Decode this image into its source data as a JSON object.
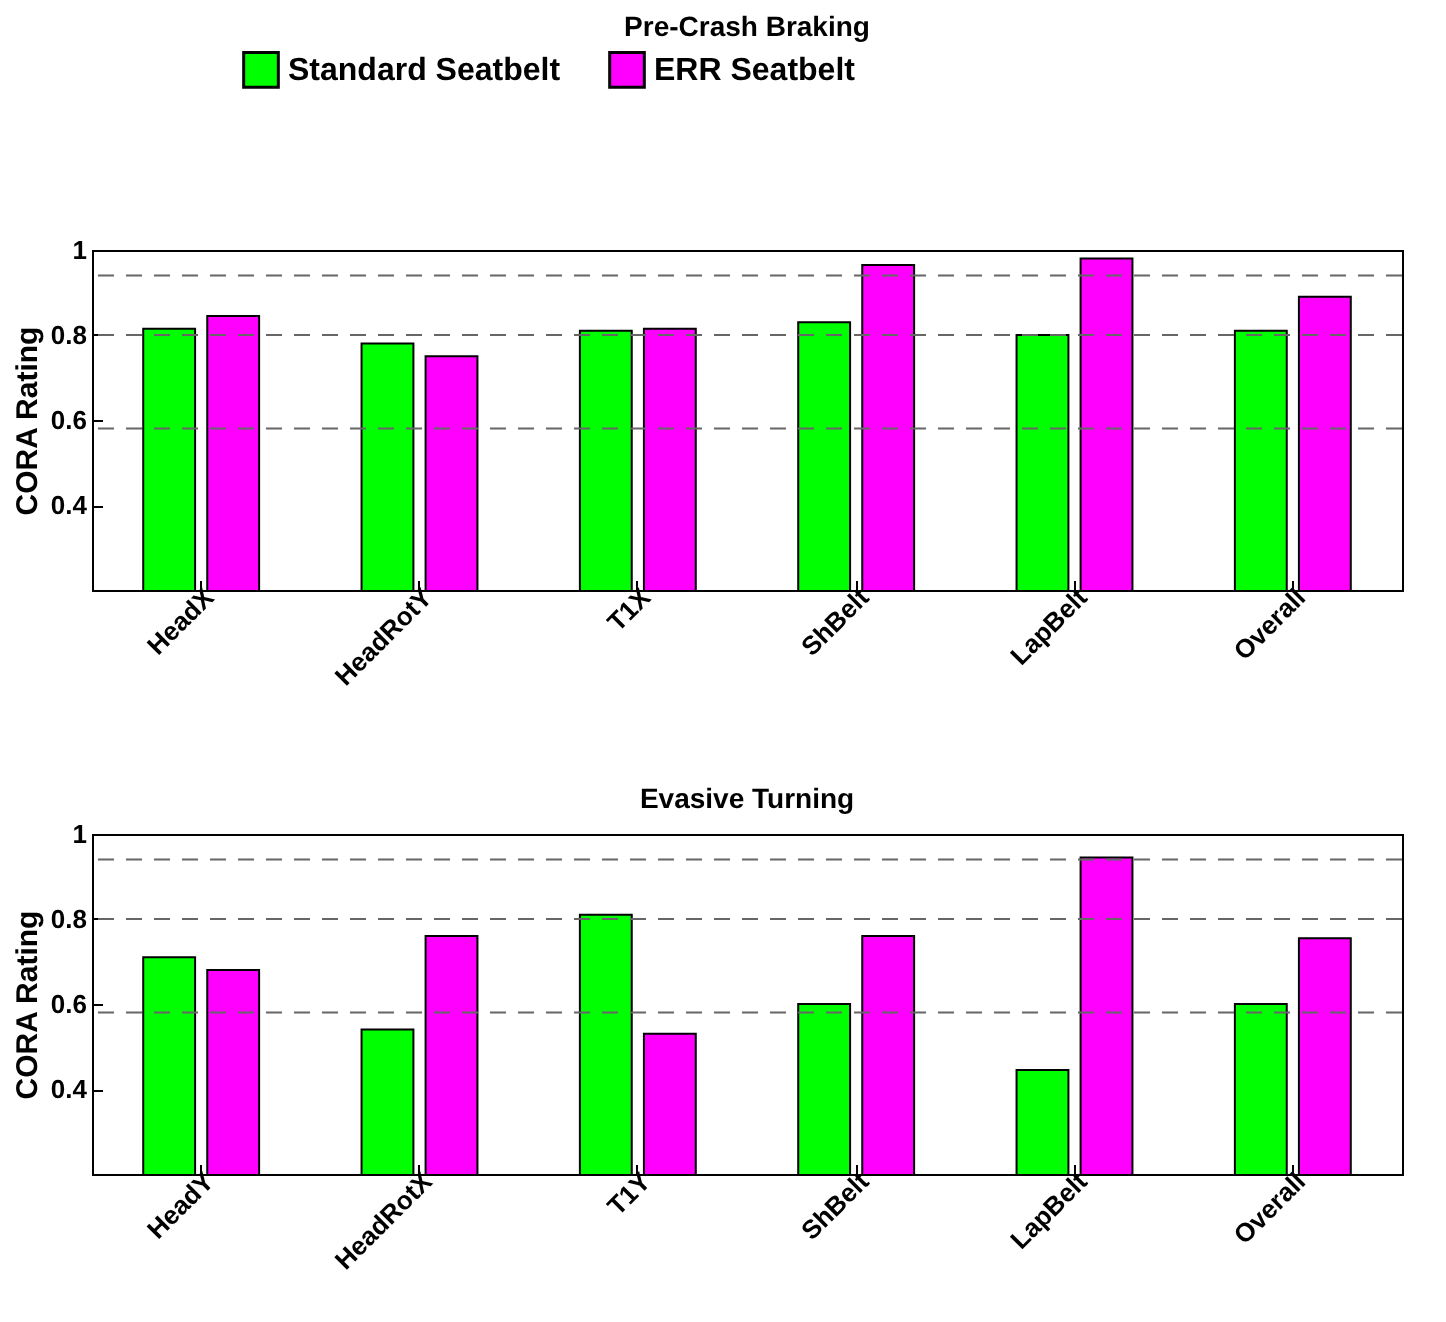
{
  "chart_data": [
    {
      "type": "bar",
      "title": "Pre-Crash Braking",
      "ylabel": "CORA Rating",
      "categories": [
        "HeadX",
        "HeadRotY",
        "T1X",
        "ShBelt",
        "LapBelt",
        "Overall"
      ],
      "series": [
        {
          "name": "Standard Seatbelt",
          "color": "#00ff00",
          "values": [
            0.815,
            0.78,
            0.81,
            0.83,
            0.8,
            0.81
          ]
        },
        {
          "name": "ERR Seatbelt",
          "color": "#ff00ff",
          "values": [
            0.845,
            0.75,
            0.815,
            0.965,
            0.98,
            0.89
          ]
        }
      ],
      "ylim": [
        0.2,
        1
      ],
      "yticks": [
        0.4,
        0.6,
        0.8,
        1
      ],
      "grid": false,
      "legend": "top",
      "ref_lines": [
        {
          "axis": "y",
          "value": 0.94,
          "color": "#666666",
          "line_style": "dashed"
        },
        {
          "axis": "y",
          "value": 0.8,
          "color": "#666666",
          "line_style": "dashed"
        },
        {
          "axis": "y",
          "value": 0.58,
          "color": "#666666",
          "line_style": "dashed"
        }
      ]
    },
    {
      "type": "bar",
      "title": "Evasive Turning",
      "ylabel": "CORA Rating",
      "categories": [
        "HeadY",
        "HeadRotX",
        "T1Y",
        "ShBelt",
        "LapBelt",
        "Overall"
      ],
      "series": [
        {
          "name": "Standard Seatbelt",
          "color": "#00ff00",
          "values": [
            0.71,
            0.54,
            0.81,
            0.6,
            0.445,
            0.6
          ]
        },
        {
          "name": "ERR Seatbelt",
          "color": "#ff00ff",
          "values": [
            0.68,
            0.76,
            0.53,
            0.76,
            0.945,
            0.755
          ]
        }
      ],
      "ylim": [
        0.2,
        1
      ],
      "yticks": [
        0.4,
        0.6,
        0.8,
        1
      ],
      "grid": false,
      "legend": false,
      "ref_lines": [
        {
          "axis": "y",
          "value": 0.94,
          "color": "#666666",
          "line_style": "dashed"
        },
        {
          "axis": "y",
          "value": 0.8,
          "color": "#666666",
          "line_style": "dashed"
        },
        {
          "axis": "y",
          "value": 0.58,
          "color": "#666666",
          "line_style": "dashed"
        }
      ]
    }
  ]
}
